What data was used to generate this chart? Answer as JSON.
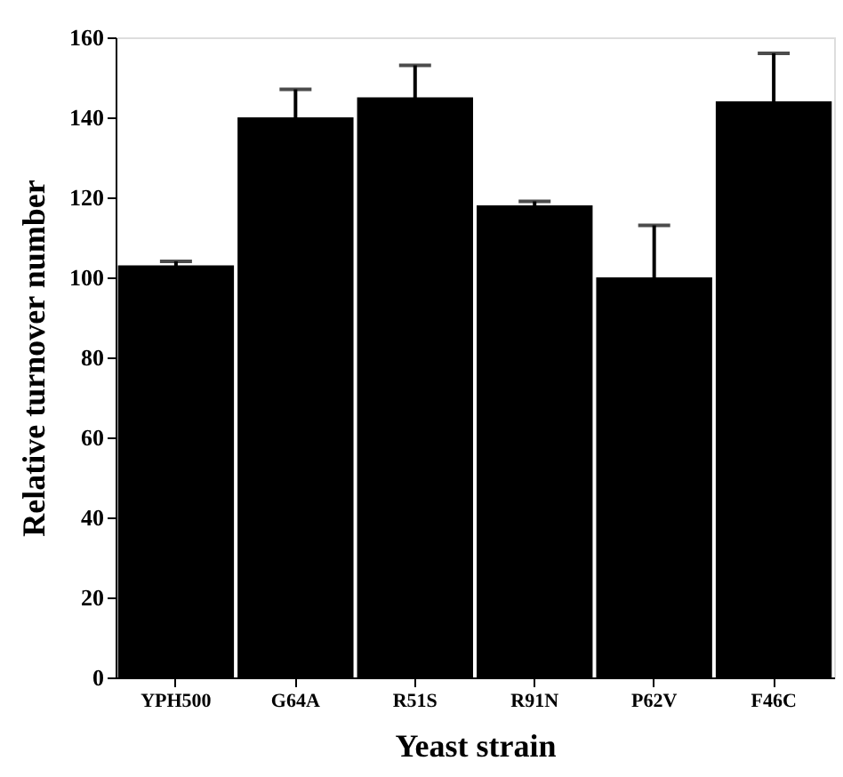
{
  "chart_data": {
    "type": "bar",
    "xlabel": "Yeast strain",
    "ylabel": "Relative turnover number",
    "categories": [
      "YPH500",
      "G64A",
      "R51S",
      "R91N",
      "P62V",
      "F46C"
    ],
    "values": [
      103,
      140,
      145,
      118,
      100,
      144
    ],
    "errors": [
      1,
      7,
      8,
      1,
      13,
      12
    ],
    "color": "#000000",
    "ylim": [
      0,
      160
    ],
    "yticks": [
      0,
      20,
      40,
      60,
      80,
      100,
      120,
      140,
      160
    ],
    "grid": false
  }
}
